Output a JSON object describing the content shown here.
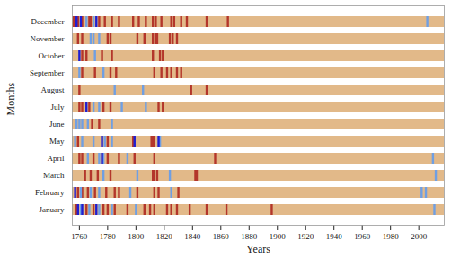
{
  "chart_data": {
    "type": "timeline",
    "x_label": "Years",
    "y_label": "Months",
    "categories": [
      "January",
      "February",
      "March",
      "April",
      "May",
      "June",
      "July",
      "August",
      "September",
      "October",
      "November",
      "December"
    ],
    "xlim": [
      1755,
      2018
    ],
    "xticks": [
      1760,
      1780,
      1800,
      1820,
      1840,
      1860,
      1880,
      1900,
      1920,
      1940,
      1960,
      1980,
      2000
    ],
    "color": "#e2b989",
    "series": [
      {
        "color": "#b3362b",
        "values": {
          "January": [
            1758,
            1765,
            1770,
            1777,
            1780,
            1785,
            1794,
            1806,
            1810,
            1813,
            1822,
            1825,
            1829,
            1838,
            1850,
            1864,
            1896
          ],
          "February": [
            1759,
            1762,
            1766,
            1771,
            1779,
            1785,
            1788,
            1801,
            1813,
            1816,
            1830
          ],
          "March": [
            1764,
            1768,
            1773,
            1782,
            1812,
            1813,
            1815,
            1842,
            1843
          ],
          "April": [
            1760,
            1762,
            1770,
            1780,
            1788,
            1799,
            1813,
            1856
          ],
          "May": [
            1759,
            1780,
            1798,
            1811,
            1812,
            1813
          ],
          "June": [
            1769,
            1774
          ],
          "July": [
            1760,
            1762,
            1767,
            1777,
            1782,
            1816,
            1819
          ],
          "August": [
            1760,
            1839,
            1850
          ],
          "September": [
            1762,
            1771,
            1782,
            1786,
            1813,
            1818,
            1822,
            1825,
            1829,
            1832
          ],
          "October": [
            1762,
            1765,
            1776,
            1783,
            1812,
            1817,
            1819
          ],
          "November": [
            1759,
            1762,
            1780,
            1782,
            1801,
            1806,
            1812,
            1814,
            1815,
            1824,
            1826,
            1829
          ],
          "December": [
            1756,
            1759,
            1762,
            1767,
            1768,
            1774,
            1778,
            1783,
            1788,
            1798,
            1802,
            1807,
            1812,
            1814,
            1818,
            1825,
            1827,
            1832,
            1836,
            1850,
            1865
          ]
        }
      },
      {
        "color": "#6f9fe3",
        "values": {
          "January": [
            1761,
            1767,
            1774,
            1783,
            1800,
            2011
          ],
          "February": [
            1761,
            1768,
            1774,
            1796,
            1825,
            2002,
            2005
          ],
          "March": [
            1777,
            1801,
            1824,
            2012
          ],
          "April": [
            1766,
            1774,
            1777,
            1794,
            2010
          ],
          "May": [
            1757,
            1762,
            1770,
            1778,
            1783,
            1817
          ],
          "June": [
            1758,
            1760,
            1762,
            1766,
            1783
          ],
          "July": [
            1770,
            1774,
            1790,
            1807
          ],
          "August": [
            1785,
            1805
          ],
          "September": [
            1760,
            1777
          ],
          "October": [
            1771
          ],
          "November": [
            1768,
            1770,
            1774
          ],
          "December": [
            1765,
            1770,
            2006
          ]
        }
      },
      {
        "color": "#1e1ed2",
        "values": {
          "January": [
            1759,
            1762,
            1772
          ],
          "February": [
            1757
          ],
          "March": [],
          "April": [
            1776
          ],
          "May": [
            1776,
            1799,
            1816
          ],
          "June": [],
          "July": [
            1765
          ],
          "August": [],
          "September": [],
          "October": [
            1760
          ],
          "November": [],
          "December": [
            1758,
            1761,
            1772
          ]
        }
      }
    ]
  }
}
